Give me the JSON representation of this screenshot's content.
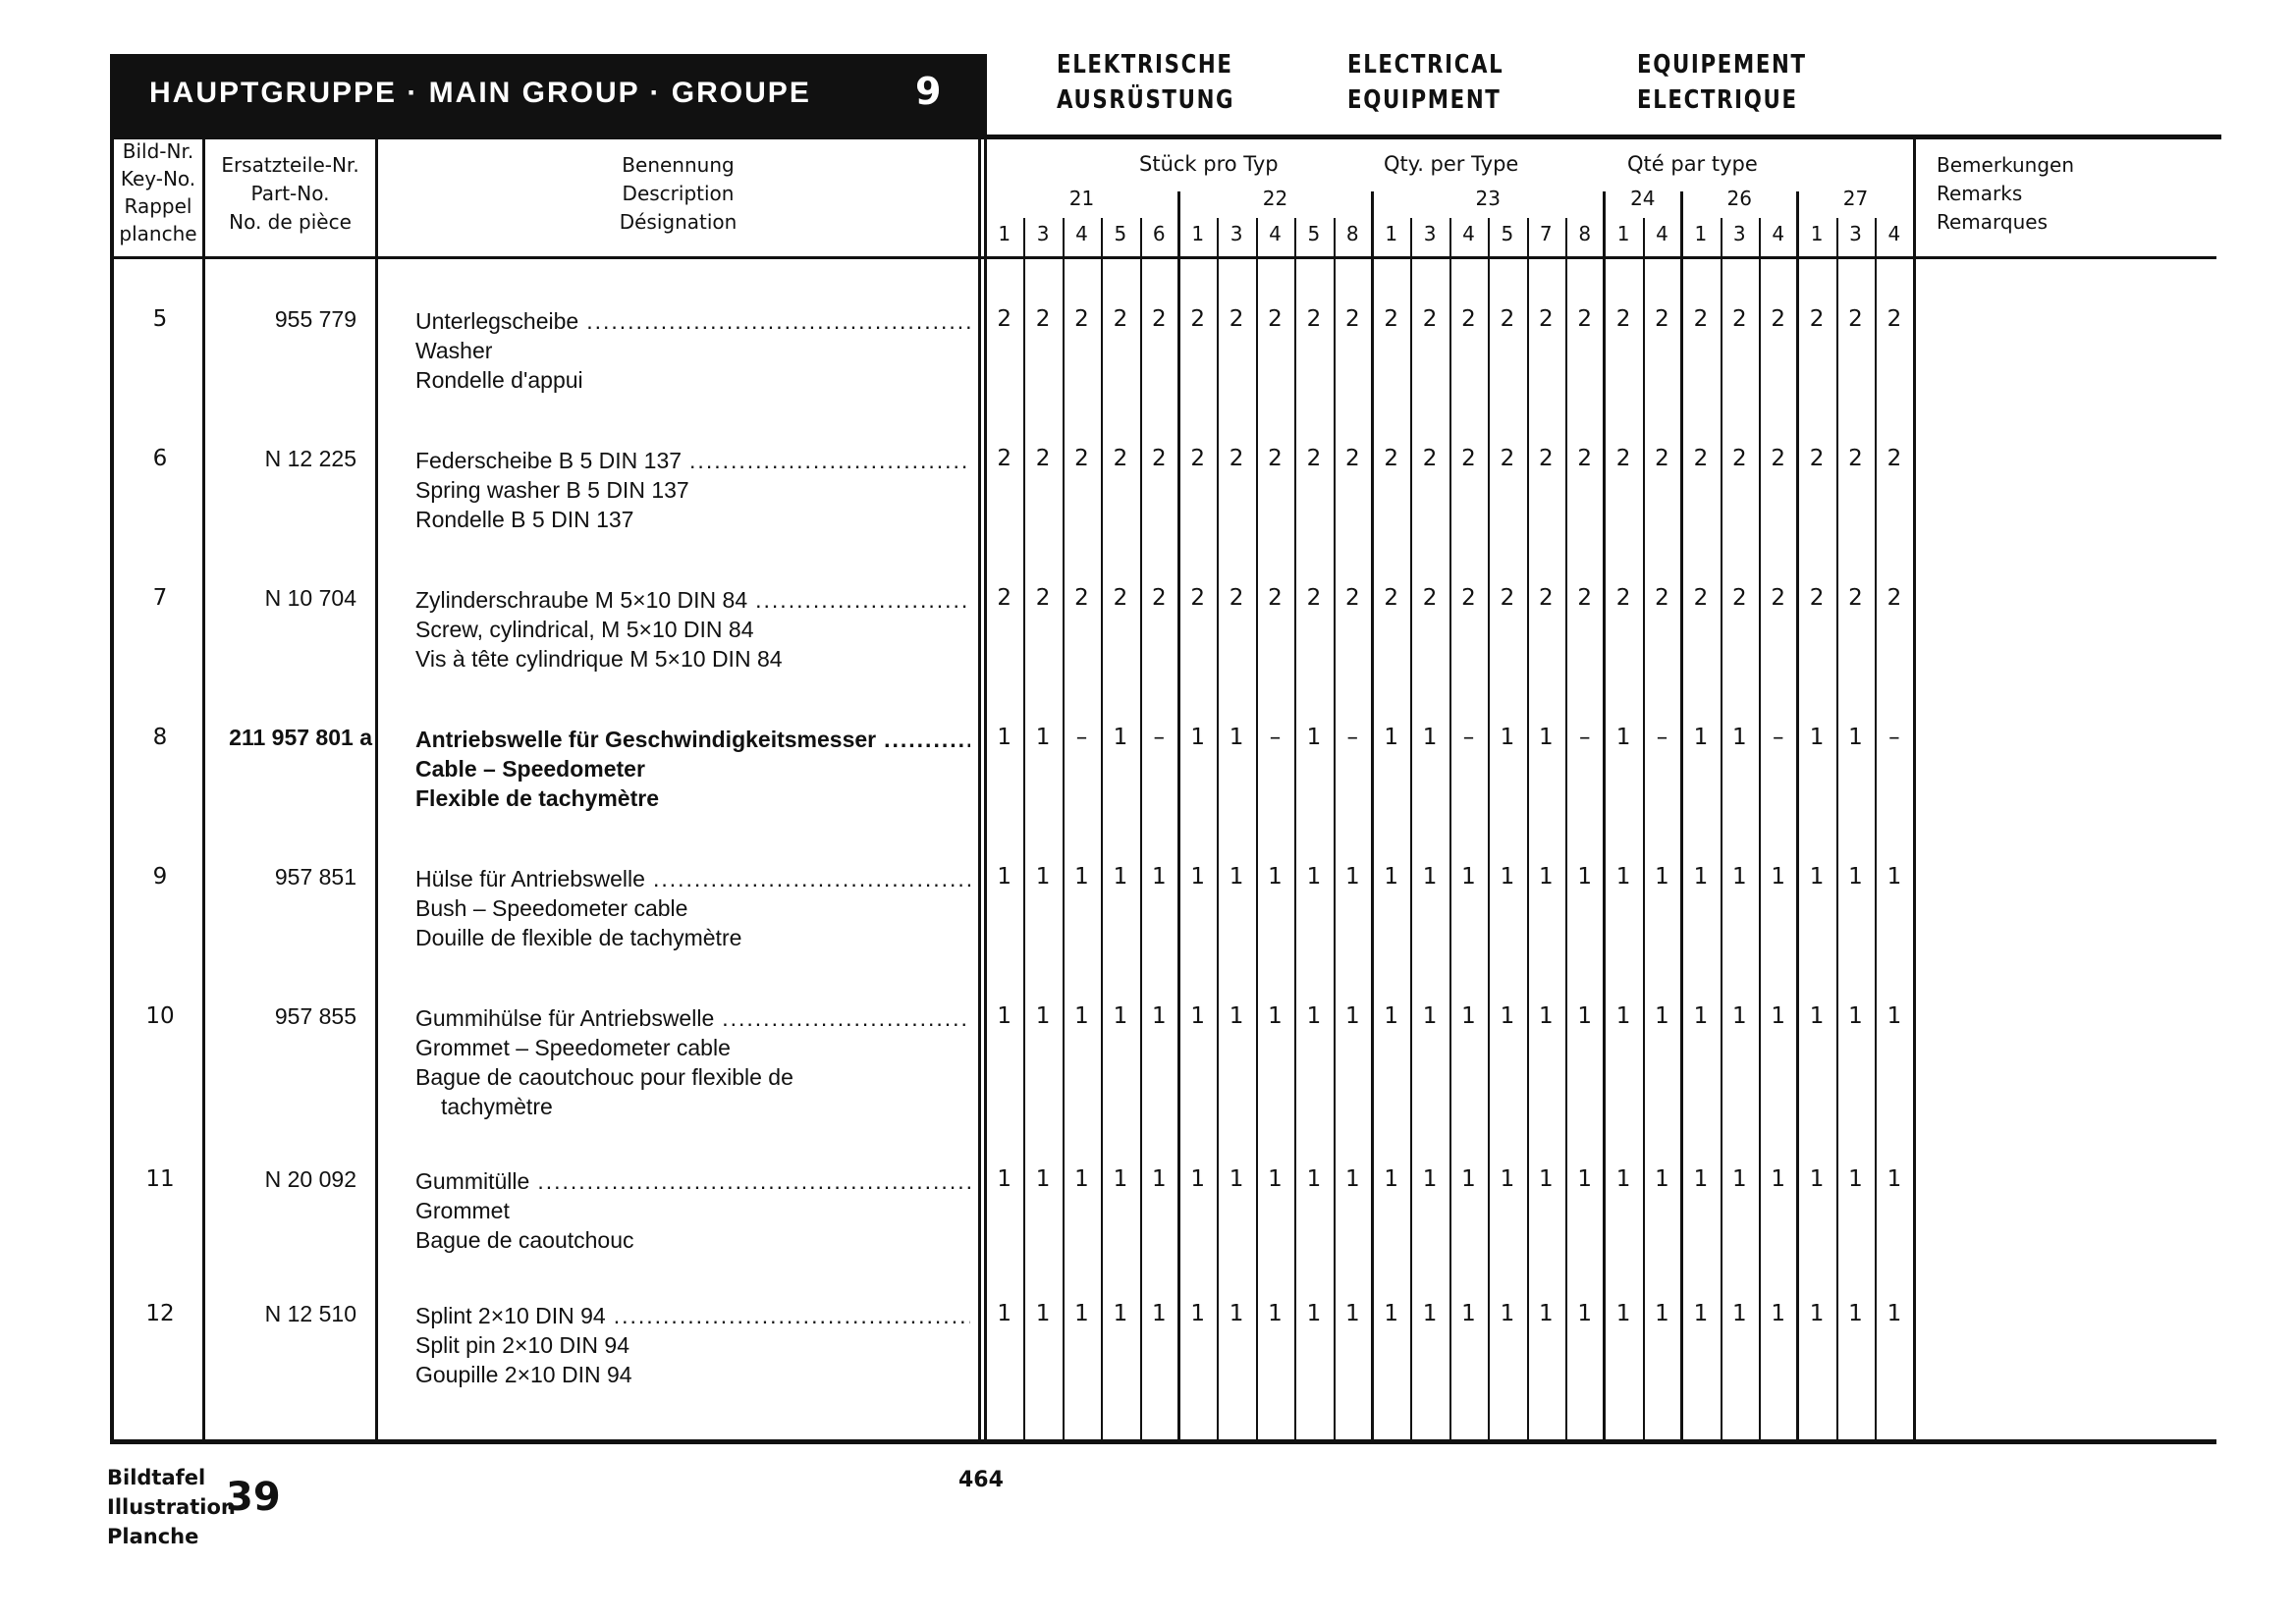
{
  "header": {
    "main_group": "HAUPTGRUPPE · MAIN GROUP · GROUPE",
    "group_number": "9",
    "titles": [
      [
        "ELEKTRISCHE",
        "AUSRÜSTUNG"
      ],
      [
        "ELECTRICAL",
        "EQUIPMENT"
      ],
      [
        "EQUIPEMENT",
        "ELECTRIQUE"
      ]
    ]
  },
  "columns": {
    "key": [
      "Bild-Nr.",
      "Key-No.",
      "Rappel",
      "planche"
    ],
    "part": [
      "Ersatzteile-Nr.",
      "Part-No.",
      "No. de pièce"
    ],
    "description": [
      "Benennung",
      "Description",
      "Désignation"
    ],
    "qty_titles": [
      "Stück pro Typ",
      "Qty. per Type",
      "Qté par type"
    ],
    "remarks": [
      "Bemerkungen",
      "Remarks",
      "Remarques"
    ],
    "type_groups": [
      {
        "label": "21",
        "subtypes": [
          "1",
          "3",
          "4",
          "5",
          "6"
        ]
      },
      {
        "label": "22",
        "subtypes": [
          "1",
          "3",
          "4",
          "5",
          "8"
        ]
      },
      {
        "label": "23",
        "subtypes": [
          "1",
          "3",
          "4",
          "5",
          "7",
          "8"
        ]
      },
      {
        "label": "24",
        "subtypes": [
          "1",
          "4"
        ]
      },
      {
        "label": "26",
        "subtypes": [
          "1",
          "3",
          "4"
        ]
      },
      {
        "label": "27",
        "subtypes": [
          "1",
          "3",
          "4"
        ]
      }
    ]
  },
  "rows": [
    {
      "key": "5",
      "part": "955 779",
      "bold": false,
      "desc": [
        "Unterlegscheibe",
        "Washer",
        "Rondelle d'appui"
      ],
      "qty": [
        "2",
        "2",
        "2",
        "2",
        "2",
        "2",
        "2",
        "2",
        "2",
        "2",
        "2",
        "2",
        "2",
        "2",
        "2",
        "2",
        "2",
        "2",
        "2",
        "2",
        "2",
        "2",
        "2",
        "2"
      ]
    },
    {
      "key": "6",
      "part": "N 12 225",
      "bold": false,
      "desc": [
        "Federscheibe B 5 DIN 137",
        "Spring washer B 5 DIN 137",
        "Rondelle B 5 DIN 137"
      ],
      "qty": [
        "2",
        "2",
        "2",
        "2",
        "2",
        "2",
        "2",
        "2",
        "2",
        "2",
        "2",
        "2",
        "2",
        "2",
        "2",
        "2",
        "2",
        "2",
        "2",
        "2",
        "2",
        "2",
        "2",
        "2"
      ]
    },
    {
      "key": "7",
      "part": "N 10 704",
      "bold": false,
      "desc": [
        "Zylinderschraube M 5×10 DIN 84",
        "Screw, cylindrical, M 5×10 DIN 84",
        "Vis à tête cylindrique M 5×10 DIN 84"
      ],
      "qty": [
        "2",
        "2",
        "2",
        "2",
        "2",
        "2",
        "2",
        "2",
        "2",
        "2",
        "2",
        "2",
        "2",
        "2",
        "2",
        "2",
        "2",
        "2",
        "2",
        "2",
        "2",
        "2",
        "2",
        "2"
      ]
    },
    {
      "key": "8",
      "part": "211 957 801 a",
      "bold": true,
      "desc": [
        "Antriebswelle für Geschwindigkeitsmesser",
        "Cable – Speedometer",
        "Flexible de tachymètre"
      ],
      "qty": [
        "1",
        "1",
        "–",
        "1",
        "–",
        "1",
        "1",
        "–",
        "1",
        "–",
        "1",
        "1",
        "–",
        "1",
        "1",
        "–",
        "1",
        "–",
        "1",
        "1",
        "–",
        "1",
        "1",
        "–"
      ]
    },
    {
      "key": "9",
      "part": "957 851",
      "bold": false,
      "desc": [
        "Hülse für Antriebswelle",
        "Bush – Speedometer cable",
        "Douille de flexible de tachymètre"
      ],
      "qty": [
        "1",
        "1",
        "1",
        "1",
        "1",
        "1",
        "1",
        "1",
        "1",
        "1",
        "1",
        "1",
        "1",
        "1",
        "1",
        "1",
        "1",
        "1",
        "1",
        "1",
        "1",
        "1",
        "1",
        "1"
      ]
    },
    {
      "key": "10",
      "part": "957 855",
      "bold": false,
      "desc": [
        "Gummihülse für Antriebswelle",
        "Grommet – Speedometer cable",
        "Bague de caoutchouc pour flexible de",
        "   tachymètre"
      ],
      "qty": [
        "1",
        "1",
        "1",
        "1",
        "1",
        "1",
        "1",
        "1",
        "1",
        "1",
        "1",
        "1",
        "1",
        "1",
        "1",
        "1",
        "1",
        "1",
        "1",
        "1",
        "1",
        "1",
        "1",
        "1"
      ]
    },
    {
      "key": "11",
      "part": "N 20 092",
      "bold": false,
      "desc": [
        "Gummitülle",
        "Grommet",
        "Bague de caoutchouc"
      ],
      "qty": [
        "1",
        "1",
        "1",
        "1",
        "1",
        "1",
        "1",
        "1",
        "1",
        "1",
        "1",
        "1",
        "1",
        "1",
        "1",
        "1",
        "1",
        "1",
        "1",
        "1",
        "1",
        "1",
        "1",
        "1"
      ]
    },
    {
      "key": "12",
      "part": "N 12 510",
      "bold": false,
      "desc": [
        "Splint 2×10 DIN 94",
        "Split pin 2×10 DIN 94",
        "Goupille 2×10 DIN 94"
      ],
      "qty": [
        "1",
        "1",
        "1",
        "1",
        "1",
        "1",
        "1",
        "1",
        "1",
        "1",
        "1",
        "1",
        "1",
        "1",
        "1",
        "1",
        "1",
        "1",
        "1",
        "1",
        "1",
        "1",
        "1",
        "1"
      ]
    }
  ],
  "footer": {
    "plate_labels": [
      "Bildtafel",
      "Illustration",
      "Planche"
    ],
    "plate_number": "39",
    "page_number": "464"
  }
}
